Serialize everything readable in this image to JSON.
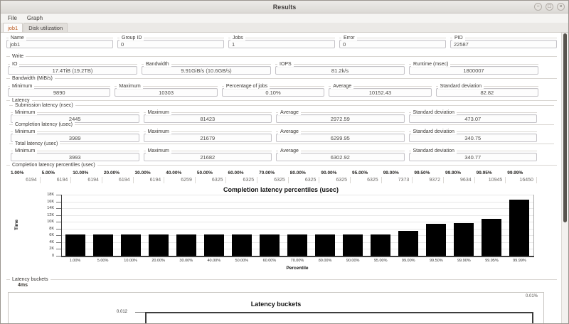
{
  "window": {
    "title": "Results",
    "controls": {
      "minimize": "−",
      "maximize": "□",
      "close": "×"
    }
  },
  "menu": {
    "items": [
      {
        "label": "File"
      },
      {
        "label": "Graph"
      }
    ]
  },
  "tabs": [
    {
      "label": "job1",
      "active": true
    },
    {
      "label": "Disk utilization",
      "active": false
    }
  ],
  "job_fields": [
    {
      "label": "Name",
      "value": "job1"
    },
    {
      "label": "Group ID",
      "value": "0"
    },
    {
      "label": "Jobs",
      "value": "1"
    },
    {
      "label": "Error",
      "value": "0"
    },
    {
      "label": "PID",
      "value": "22587"
    }
  ],
  "write": {
    "label": "Write",
    "fields": [
      {
        "label": "IO",
        "value": "17.4TiB (19.2TB)"
      },
      {
        "label": "Bandwidth",
        "value": "9.91GiB/s (10.6GB/s)"
      },
      {
        "label": "IOPS",
        "value": "81.2k/s"
      },
      {
        "label": "Runtime (msec)",
        "value": "1800007"
      }
    ]
  },
  "bandwidth": {
    "label": "Bandwidth (MiB/s)",
    "fields": [
      {
        "label": "Minimum",
        "value": "9890"
      },
      {
        "label": "Maximum",
        "value": "10303"
      },
      {
        "label": "Percentage of jobs",
        "value": "0.10%"
      },
      {
        "label": "Average",
        "value": "10152.43"
      },
      {
        "label": "Standard deviation",
        "value": "82.82"
      }
    ]
  },
  "latency": {
    "label": "Latency",
    "groups": [
      {
        "label": "Submission latency (nsec)",
        "fields": [
          {
            "label": "Minimum",
            "value": "2445"
          },
          {
            "label": "Maximum",
            "value": "81423"
          },
          {
            "label": "Average",
            "value": "2972.59"
          },
          {
            "label": "Standard deviation",
            "value": "473.07"
          }
        ]
      },
      {
        "label": "Completion latency (usec)",
        "fields": [
          {
            "label": "Minimum",
            "value": "3989"
          },
          {
            "label": "Maximum",
            "value": "21679"
          },
          {
            "label": "Average",
            "value": "6299.95"
          },
          {
            "label": "Standard deviation",
            "value": "340.75"
          }
        ]
      },
      {
        "label": "Total latency (usec)",
        "fields": [
          {
            "label": "Minimum",
            "value": "3993"
          },
          {
            "label": "Maximum",
            "value": "21682"
          },
          {
            "label": "Average",
            "value": "6302.92"
          },
          {
            "label": "Standard deviation",
            "value": "340.77"
          }
        ]
      }
    ]
  },
  "percentiles": {
    "label": "Completion latency percentiles (usec)",
    "columns": [
      {
        "pct": "1.00%",
        "value": "6194"
      },
      {
        "pct": "5.00%",
        "value": "6194"
      },
      {
        "pct": "10.00%",
        "value": "6194"
      },
      {
        "pct": "20.00%",
        "value": "6194"
      },
      {
        "pct": "30.00%",
        "value": "6194"
      },
      {
        "pct": "40.00%",
        "value": "6259"
      },
      {
        "pct": "50.00%",
        "value": "6325"
      },
      {
        "pct": "60.00%",
        "value": "6325"
      },
      {
        "pct": "70.00%",
        "value": "6325"
      },
      {
        "pct": "80.00%",
        "value": "6325"
      },
      {
        "pct": "90.00%",
        "value": "6325"
      },
      {
        "pct": "95.00%",
        "value": "6325"
      },
      {
        "pct": "99.00%",
        "value": "7373"
      },
      {
        "pct": "99.50%",
        "value": "9372"
      },
      {
        "pct": "99.90%",
        "value": "9634"
      },
      {
        "pct": "99.95%",
        "value": "10945"
      },
      {
        "pct": "99.99%",
        "value": "16450"
      }
    ]
  },
  "latency_buckets": {
    "label": "Latency buckets",
    "bucket_label": "4ms",
    "value_label": "0.01%",
    "top_ytick": "0.012",
    "chart_title": "Latency buckets"
  },
  "chart_data": [
    {
      "type": "bar",
      "title": "Completion latency percentiles (usec)",
      "xlabel": "Percentile",
      "ylabel": "Time",
      "categories": [
        "1.00%",
        "5.00%",
        "10.00%",
        "20.00%",
        "30.00%",
        "40.00%",
        "50.00%",
        "60.00%",
        "70.00%",
        "80.00%",
        "90.00%",
        "95.00%",
        "99.00%",
        "99.50%",
        "99.90%",
        "99.95%",
        "99.99%"
      ],
      "values": [
        6194,
        6194,
        6194,
        6194,
        6194,
        6259,
        6325,
        6325,
        6325,
        6325,
        6325,
        6325,
        7373,
        9372,
        9634,
        10945,
        16450
      ],
      "ylim": [
        0,
        18000
      ],
      "yticks": [
        "0",
        "2K",
        "4K",
        "6K",
        "8K",
        "10K",
        "12K",
        "14K",
        "16K",
        "18K"
      ],
      "grid": true,
      "legend": "none",
      "bar_color": "#000000"
    },
    {
      "type": "bar",
      "title": "Latency buckets",
      "categories": [
        "4ms"
      ],
      "values": [
        0.01
      ],
      "value_labels": [
        "0.01%"
      ],
      "yticks_visible": [
        "0.012"
      ],
      "truncated": true,
      "bar_color": "#000000"
    }
  ],
  "colors": {
    "accent_tab_text": "#bb5a1e",
    "bar": "#000000",
    "scroll_thumb": "#59554f"
  }
}
